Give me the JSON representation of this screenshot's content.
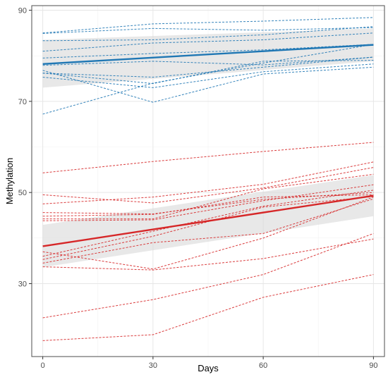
{
  "chart_data": {
    "type": "line",
    "xlabel": "Days",
    "ylabel": "Methylation",
    "xlim": [
      -3,
      93
    ],
    "ylim": [
      14,
      91
    ],
    "x_ticks": [
      0,
      30,
      60,
      90
    ],
    "y_ticks": [
      30,
      50,
      70,
      90
    ],
    "x_minor": [
      15,
      45,
      75
    ],
    "y_minor": [
      40,
      60,
      80
    ],
    "grid": true,
    "legend": "none",
    "colors": {
      "blue": "#1f77b4",
      "red": "#d62728",
      "ribbon": "#d9d9d9",
      "panel_border": "#4d4d4d"
    },
    "groups": [
      {
        "color": "blue",
        "trend": {
          "x": [
            0,
            90
          ],
          "y": [
            78.2,
            82.4
          ]
        },
        "ribbon": {
          "x": [
            0,
            90
          ],
          "upper": [
            83.5,
            86.0
          ],
          "lower": [
            73.0,
            78.8
          ]
        },
        "subjects": [
          {
            "x": [
              0,
              30,
              60,
              90
            ],
            "y": [
              85.0,
              87.0,
              87.6,
              88.4
            ]
          },
          {
            "x": [
              0,
              30,
              60,
              90
            ],
            "y": [
              84.9,
              86.0,
              85.6,
              86.2
            ]
          },
          {
            "x": [
              0,
              30,
              60,
              90
            ],
            "y": [
              83.3,
              83.5,
              84.6,
              86.4
            ]
          },
          {
            "x": [
              0,
              30,
              60,
              90
            ],
            "y": [
              81.0,
              82.8,
              83.5,
              85.0
            ]
          },
          {
            "x": [
              0,
              30,
              60,
              90
            ],
            "y": [
              79.5,
              80.5,
              81.3,
              82.5
            ]
          },
          {
            "x": [
              0,
              30,
              60,
              90
            ],
            "y": [
              77.9,
              78.8,
              78.0,
              79.7
            ]
          },
          {
            "x": [
              0,
              30,
              60,
              90
            ],
            "y": [
              76.2,
              75.3,
              77.5,
              79.7
            ]
          },
          {
            "x": [
              0,
              30,
              60,
              90
            ],
            "y": [
              76.2,
              73.9,
              78.8,
              79.0
            ]
          },
          {
            "x": [
              0,
              30,
              60,
              90
            ],
            "y": [
              75.3,
              73.0,
              76.5,
              78.2
            ]
          },
          {
            "x": [
              0,
              30,
              60,
              90
            ],
            "y": [
              76.8,
              69.8,
              76.0,
              77.5
            ]
          },
          {
            "x": [
              0,
              30,
              60,
              90
            ],
            "y": [
              67.2,
              74.0,
              78.4,
              82.5
            ]
          }
        ]
      },
      {
        "color": "red",
        "trend": {
          "x": [
            0,
            90
          ],
          "y": [
            38.2,
            49.3
          ]
        },
        "ribbon": {
          "x": [
            0,
            90
          ],
          "upper": [
            42.9,
            53.8
          ],
          "lower": [
            33.6,
            44.8
          ]
        },
        "subjects": [
          {
            "x": [
              0,
              30,
              60,
              90
            ],
            "y": [
              54.3,
              56.8,
              59.0,
              61.0
            ]
          },
          {
            "x": [
              0,
              30,
              60,
              90
            ],
            "y": [
              49.5,
              47.7,
              51.0,
              55.5
            ]
          },
          {
            "x": [
              0,
              30,
              60,
              90
            ],
            "y": [
              47.5,
              49.0,
              51.8,
              56.7
            ]
          },
          {
            "x": [
              0,
              30,
              60,
              90
            ],
            "y": [
              45.6,
              45.3,
              48.5,
              50.0
            ]
          },
          {
            "x": [
              0,
              30,
              60,
              90
            ],
            "y": [
              44.8,
              45.2,
              49.0,
              49.5
            ]
          },
          {
            "x": [
              0,
              30,
              60,
              90
            ],
            "y": [
              44.2,
              44.2,
              50.8,
              54.0
            ]
          },
          {
            "x": [
              0,
              30,
              60,
              90
            ],
            "y": [
              43.8,
              44.0,
              48.2,
              51.7
            ]
          },
          {
            "x": [
              0,
              30,
              60,
              90
            ],
            "y": [
              36.0,
              41.5,
              47.0,
              50.5
            ]
          },
          {
            "x": [
              0,
              30,
              60,
              90
            ],
            "y": [
              35.3,
              40.4,
              46.8,
              49.1
            ]
          },
          {
            "x": [
              0,
              30,
              60,
              90
            ],
            "y": [
              34.5,
              39.0,
              41.0,
              48.6
            ]
          },
          {
            "x": [
              0,
              30,
              60,
              90
            ],
            "y": [
              37.0,
              33.2,
              40.0,
              49.0
            ]
          },
          {
            "x": [
              0,
              30,
              60,
              90
            ],
            "y": [
              33.7,
              33.0,
              35.5,
              39.8
            ]
          },
          {
            "x": [
              0,
              30,
              60,
              90
            ],
            "y": [
              22.5,
              26.5,
              32.0,
              41.0
            ]
          },
          {
            "x": [
              0,
              30,
              60,
              90
            ],
            "y": [
              17.5,
              18.8,
              27.0,
              32.0
            ]
          }
        ]
      }
    ]
  }
}
